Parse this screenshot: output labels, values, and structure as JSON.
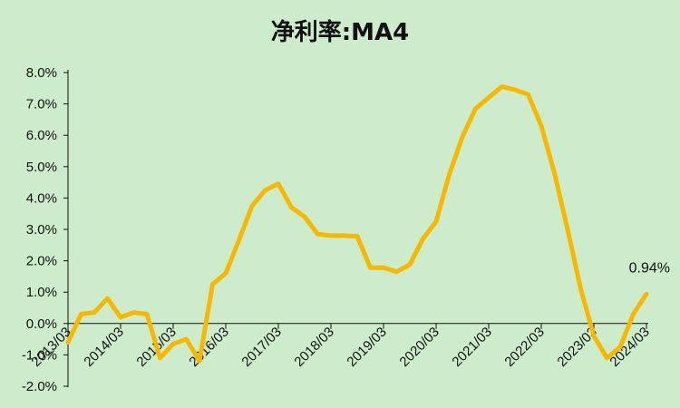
{
  "chart_data": {
    "type": "line",
    "title": "净利率:MA4",
    "xlabel": "",
    "ylabel": "",
    "ylim": [
      -2.0,
      8.0
    ],
    "y_ticks": [
      "-2.0%",
      "-1.0%",
      "0.0%",
      "1.0%",
      "2.0%",
      "3.0%",
      "4.0%",
      "5.0%",
      "6.0%",
      "7.0%",
      "8.0%"
    ],
    "x_tick_labels": [
      "2013/03",
      "2014/03",
      "2015/03",
      "2016/03",
      "2017/03",
      "2018/03",
      "2019/03",
      "2020/03",
      "2021/03",
      "2022/03",
      "2023/03",
      "2024/03"
    ],
    "grid": false,
    "series": [
      {
        "color": "#f6b800",
        "x": [
          "2013/03",
          "2013/06",
          "2013/09",
          "2013/12",
          "2014/03",
          "2014/06",
          "2014/09",
          "2014/12",
          "2015/03",
          "2015/06",
          "2015/09",
          "2015/12",
          "2016/03",
          "2016/06",
          "2016/09",
          "2016/12",
          "2017/03",
          "2017/06",
          "2017/09",
          "2017/12",
          "2018/03",
          "2018/06",
          "2018/09",
          "2018/12",
          "2019/03",
          "2019/06",
          "2019/09",
          "2019/12",
          "2020/03",
          "2020/06",
          "2020/09",
          "2020/12",
          "2021/03",
          "2021/06",
          "2021/09",
          "2021/12",
          "2022/03",
          "2022/06",
          "2022/09",
          "2022/12",
          "2023/03",
          "2023/06",
          "2023/09",
          "2023/12",
          "2024/03"
        ],
        "values": [
          -0.6,
          0.3,
          0.35,
          0.8,
          0.2,
          0.35,
          0.3,
          -1.1,
          -0.65,
          -0.5,
          -1.2,
          1.25,
          1.6,
          2.65,
          3.75,
          4.25,
          4.45,
          3.7,
          3.4,
          2.85,
          2.8,
          2.8,
          2.78,
          1.78,
          1.78,
          1.65,
          1.88,
          2.7,
          3.25,
          4.75,
          5.95,
          6.85,
          7.2,
          7.55,
          7.45,
          7.3,
          6.3,
          4.8,
          3.0,
          1.1,
          -0.4,
          -1.1,
          -0.75,
          0.3,
          0.94
        ]
      }
    ],
    "annotations": [
      {
        "text": "0.94%",
        "x": "2024/03",
        "y": 0.94
      }
    ]
  }
}
